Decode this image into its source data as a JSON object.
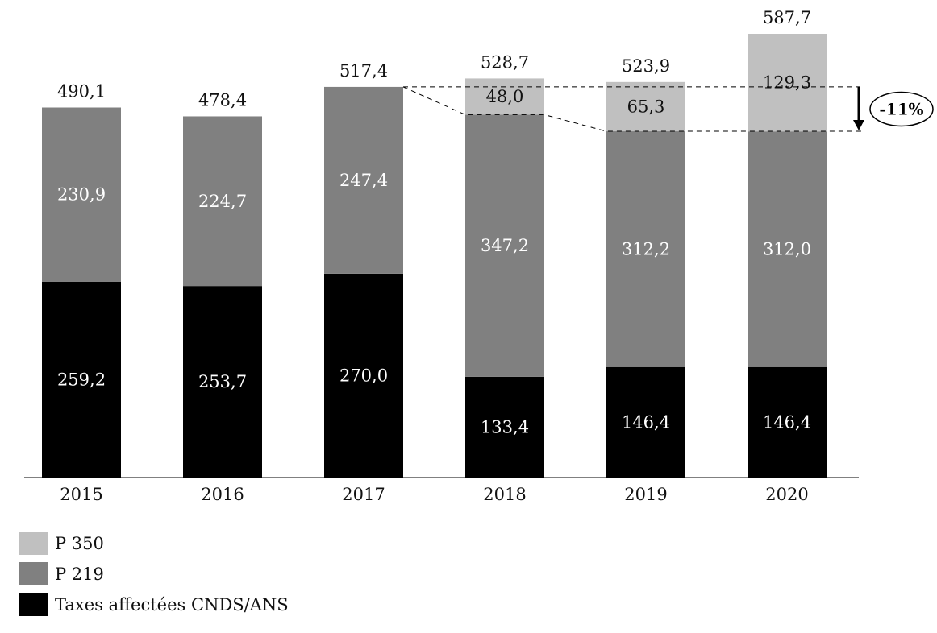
{
  "chart_data": {
    "type": "bar",
    "stacked": true,
    "categories": [
      "2015",
      "2016",
      "2017",
      "2018",
      "2019",
      "2020"
    ],
    "series": [
      {
        "name": "Taxes affectées CNDS/ANS",
        "color": "#000000",
        "label_color": "#ffffff",
        "values": [
          259.2,
          253.7,
          270.0,
          133.4,
          146.4,
          146.4
        ],
        "labels": [
          "259,2",
          "253,7",
          "270,0",
          "133,4",
          "146,4",
          "146,4"
        ]
      },
      {
        "name": "P 219",
        "color": "#808080",
        "label_color": "#ffffff",
        "values": [
          230.9,
          224.7,
          247.4,
          347.2,
          312.2,
          312.0
        ],
        "labels": [
          "230,9",
          "224,7",
          "247,4",
          "347,2",
          "312,2",
          "312,0"
        ]
      },
      {
        "name": "P 350",
        "color": "#c0c0c0",
        "label_color": "#111111",
        "values": [
          null,
          null,
          null,
          48.0,
          65.3,
          129.3
        ],
        "labels": [
          null,
          null,
          null,
          "48,0",
          "65,3",
          "129,3"
        ]
      }
    ],
    "totals": [
      490.1,
      478.4,
      517.4,
      528.7,
      523.9,
      587.7
    ],
    "total_labels": [
      "490,1",
      "478,4",
      "517,4",
      "528,7",
      "523,9",
      "587,7"
    ],
    "annotation": {
      "text": "-11%",
      "from_value": 517.4,
      "to_value": 458.6
    },
    "ylim": [
      0,
      587.7
    ],
    "grid": false,
    "legend_position": "bottom-left"
  },
  "legend": [
    {
      "label": "P 350",
      "color": "#c0c0c0"
    },
    {
      "label": "P 219",
      "color": "#808080"
    },
    {
      "label": "Taxes affectées CNDS/ANS",
      "color": "#000000"
    }
  ]
}
